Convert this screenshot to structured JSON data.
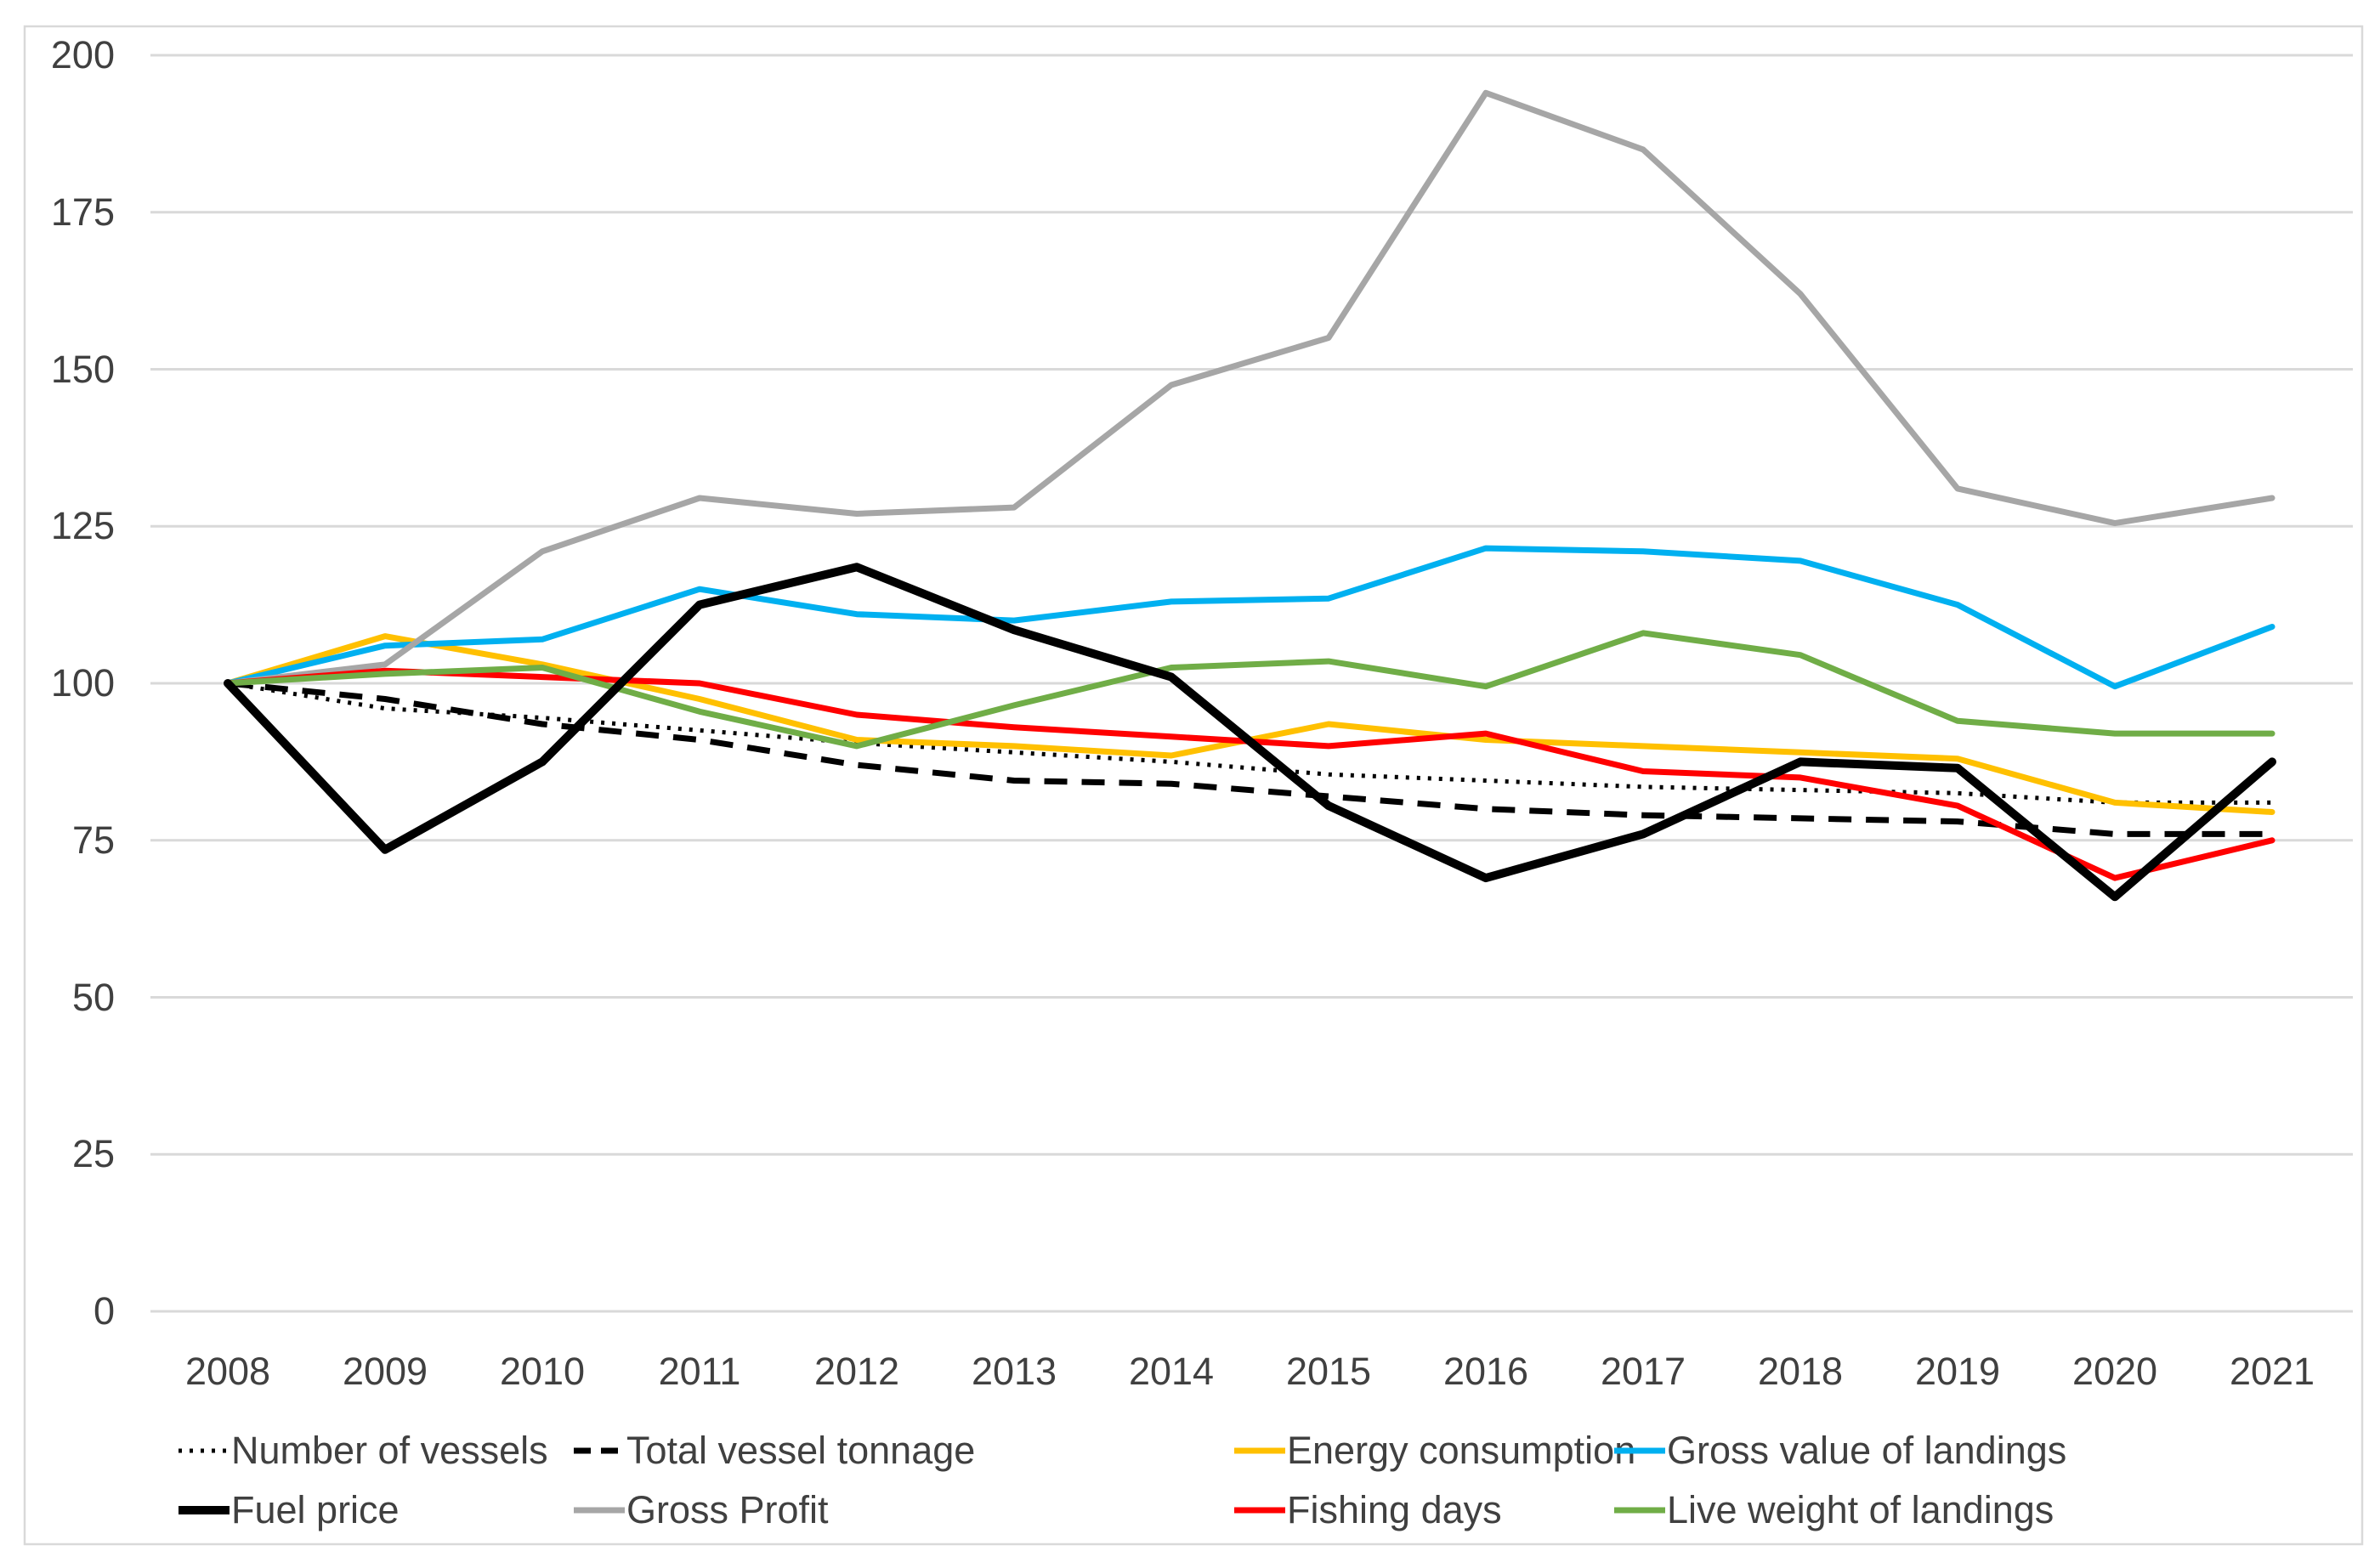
{
  "chart_data": {
    "type": "line",
    "title": "",
    "xlabel": "",
    "ylabel": "",
    "x": [
      2008,
      2009,
      2010,
      2011,
      2012,
      2013,
      2014,
      2015,
      2016,
      2017,
      2018,
      2019,
      2020,
      2021
    ],
    "ylim": [
      0,
      200
    ],
    "yticks": [
      0,
      25,
      50,
      75,
      100,
      125,
      150,
      175,
      200
    ],
    "grid": "horizontal",
    "legend_position": "bottom",
    "grid_color": "#D9D9D9",
    "axis_text_color": "#404040",
    "series": [
      {
        "name": "Number of vessels",
        "color": "#000000",
        "style": "dotted",
        "width": 5,
        "values": [
          100,
          96,
          94.5,
          92.5,
          90.5,
          89,
          87.5,
          85.5,
          84.5,
          83.5,
          83,
          82.5,
          81,
          81
        ]
      },
      {
        "name": "Total vessel tonnage",
        "color": "#000000",
        "style": "dashed",
        "width": 7,
        "values": [
          100,
          97.5,
          93.5,
          91,
          87,
          84.5,
          84,
          82,
          80,
          79,
          78.5,
          78,
          76,
          76
        ]
      },
      {
        "name": "Energy consumption",
        "color": "#FFC000",
        "style": "solid",
        "width": 7,
        "values": [
          100,
          107.5,
          103,
          97.5,
          91,
          90,
          88.5,
          93.5,
          91,
          90,
          89,
          88,
          81,
          79.5
        ]
      },
      {
        "name": "Gross value of landings",
        "color": "#00B0F0",
        "style": "solid",
        "width": 7,
        "values": [
          100,
          106,
          107,
          115,
          111,
          110,
          113,
          113.5,
          121.5,
          121,
          119.5,
          112.5,
          99.5,
          109
        ]
      },
      {
        "name": "Gross Profit",
        "color": "#A6A6A6",
        "style": "solid",
        "width": 7,
        "values": [
          100,
          103,
          121,
          129.5,
          127,
          128,
          147.5,
          155,
          194,
          185,
          162,
          131,
          125.5,
          129.5
        ]
      },
      {
        "name": "Fishing days",
        "color": "#FF0000",
        "style": "solid",
        "width": 7,
        "values": [
          100,
          102,
          101,
          100,
          95,
          93,
          91.5,
          90,
          92,
          86,
          85,
          80.5,
          69,
          75
        ]
      },
      {
        "name": "Live weight of landings",
        "color": "#70AD47",
        "style": "solid",
        "width": 7,
        "values": [
          100,
          101.5,
          102.5,
          95.5,
          90,
          96.5,
          102.5,
          103.5,
          99.5,
          108,
          104.5,
          94,
          92,
          92
        ]
      },
      {
        "name": "Fuel price",
        "color": "#000000",
        "style": "solid",
        "width": 10,
        "values": [
          100,
          73.5,
          87.5,
          112.5,
          118.5,
          108.5,
          101,
          80.5,
          69,
          76,
          87.5,
          86.5,
          66,
          87.5
        ]
      }
    ],
    "legend_rows": [
      [
        "Number of vessels",
        "Total vessel tonnage",
        "Energy consumption",
        "Gross value of landings"
      ],
      [
        "Fuel price",
        "Gross Profit",
        "Fishing days",
        "Live weight of landings"
      ]
    ]
  }
}
